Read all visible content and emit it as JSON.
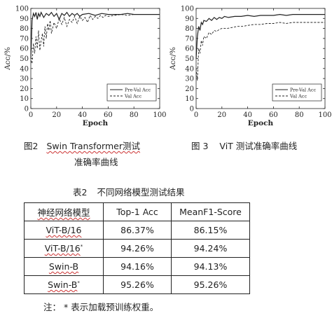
{
  "figures": [
    {
      "number": "图2",
      "caption_line1": "Swin Transformer测试",
      "caption_line2": "准确率曲线"
    },
    {
      "number": "图 3",
      "caption": "ViT 测试准确率曲线"
    }
  ],
  "chart_data": [
    {
      "type": "line",
      "title": "",
      "xlabel": "Epoch",
      "ylabel": "Acc/%",
      "xlim": [
        0,
        100
      ],
      "ylim": [
        0,
        100
      ],
      "xticks": [
        "0",
        "20",
        "40",
        "60",
        "80",
        "100"
      ],
      "yticks": [
        "0",
        "10",
        "20",
        "30",
        "40",
        "50",
        "60",
        "70",
        "80",
        "90",
        "100"
      ],
      "legend_position": "bottom-right",
      "grid": false,
      "series": [
        {
          "name": "Pre-Val Acc",
          "style": "solid",
          "x": [
            0,
            1,
            2,
            3,
            4,
            5,
            6,
            7,
            8,
            10,
            12,
            14,
            16,
            18,
            20,
            22,
            24,
            26,
            28,
            30,
            32,
            34,
            36,
            38,
            40,
            45,
            50,
            55,
            60,
            65,
            70,
            75,
            80,
            85,
            90,
            95,
            100
          ],
          "values": [
            50,
            88,
            95,
            92,
            96,
            89,
            95,
            92,
            96,
            91,
            95,
            93,
            96,
            92,
            95,
            89,
            95,
            93,
            96,
            92,
            95,
            93,
            95,
            92,
            94,
            95,
            93,
            95,
            94,
            94,
            94,
            95,
            94,
            94,
            94,
            94,
            94
          ]
        },
        {
          "name": "Val Acc",
          "style": "dashed",
          "x": [
            0,
            1,
            2,
            3,
            4,
            5,
            6,
            7,
            8,
            9,
            10,
            11,
            12,
            13,
            14,
            15,
            16,
            18,
            20,
            22,
            24,
            26,
            28,
            30,
            32,
            34,
            36,
            38,
            40,
            42,
            44,
            46,
            48,
            50,
            52,
            54,
            56,
            58,
            60,
            65,
            70,
            75,
            80,
            85,
            90,
            95,
            100
          ],
          "values": [
            48,
            45,
            65,
            55,
            72,
            60,
            78,
            58,
            68,
            75,
            62,
            82,
            70,
            85,
            78,
            88,
            75,
            86,
            80,
            90,
            84,
            91,
            82,
            89,
            86,
            92,
            85,
            92,
            88,
            91,
            86,
            93,
            89,
            92,
            90,
            93,
            91,
            93,
            92,
            93,
            94,
            93,
            94,
            94,
            94,
            94,
            94
          ]
        }
      ]
    },
    {
      "type": "line",
      "title": "",
      "xlabel": "Epoch",
      "ylabel": "Acc/%",
      "xlim": [
        0,
        100
      ],
      "ylim": [
        0,
        100
      ],
      "xticks": [
        "0",
        "20",
        "40",
        "60",
        "80",
        "100"
      ],
      "yticks": [
        "0",
        "10",
        "20",
        "30",
        "40",
        "50",
        "60",
        "70",
        "80",
        "90",
        "100"
      ],
      "legend_position": "bottom-right",
      "grid": false,
      "series": [
        {
          "name": "Pre-Val Acc",
          "style": "solid",
          "x": [
            0,
            1,
            2,
            3,
            4,
            5,
            6,
            8,
            10,
            12,
            14,
            16,
            18,
            20,
            22,
            25,
            30,
            35,
            40,
            45,
            50,
            55,
            60,
            65,
            70,
            75,
            80,
            85,
            90,
            95,
            100
          ],
          "values": [
            50,
            72,
            82,
            78,
            86,
            84,
            88,
            87,
            90,
            88,
            91,
            89,
            91,
            90,
            92,
            91,
            92,
            92,
            93,
            92,
            93,
            93,
            93,
            94,
            93,
            94,
            94,
            94,
            94,
            94,
            94
          ]
        },
        {
          "name": "Val Acc",
          "style": "dashed",
          "x": [
            0,
            1,
            2,
            3,
            4,
            5,
            6,
            8,
            10,
            12,
            14,
            16,
            18,
            20,
            24,
            28,
            32,
            36,
            40,
            45,
            50,
            55,
            60,
            65,
            70,
            75,
            80,
            85,
            90,
            95,
            100
          ],
          "values": [
            40,
            28,
            60,
            55,
            68,
            63,
            72,
            70,
            76,
            74,
            78,
            77,
            79,
            80,
            80,
            81,
            82,
            82,
            83,
            84,
            84,
            85,
            85,
            86,
            85,
            86,
            86,
            86,
            86,
            86,
            86
          ]
        }
      ]
    }
  ],
  "table": {
    "number": "表2",
    "title": "不同网络模型测试结果",
    "headers": [
      "神经网络模型",
      "Top-1 Acc",
      "MeanF1-Score"
    ],
    "rows": [
      {
        "model": "ViT-B/16",
        "star": "",
        "top1": "86.37%",
        "f1": "86.15%"
      },
      {
        "model": "ViT-B/16",
        "star": "*",
        "top1": "94.26%",
        "f1": "94.24%"
      },
      {
        "model": "Swin-B",
        "star": "",
        "top1": "94.16%",
        "f1": "94.13%"
      },
      {
        "model": "Swin-B",
        "star": "*",
        "top1": "95.26%",
        "f1": "95.26%"
      }
    ],
    "note": "注：  * 表示加载预训练权重。"
  }
}
